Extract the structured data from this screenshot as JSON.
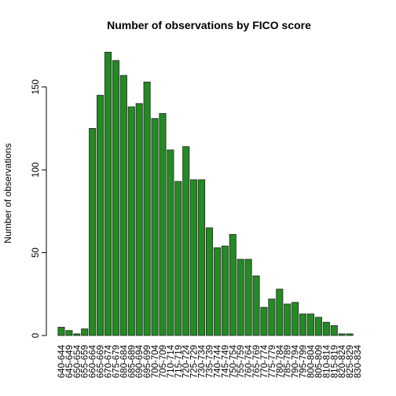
{
  "chart_data": {
    "type": "bar",
    "title": "Number of observations by FICO score",
    "xlabel": "",
    "ylabel": "Number of observations",
    "ylim": [
      0,
      175
    ],
    "yticks": [
      0,
      50,
      100,
      150
    ],
    "grid": false,
    "bar_color": "#228B22",
    "categories": [
      "640-644",
      "645-649",
      "650-654",
      "655-659",
      "660-664",
      "665-669",
      "670-674",
      "675-679",
      "680-684",
      "685-689",
      "690-694",
      "695-699",
      "700-704",
      "705-709",
      "710-714",
      "715-719",
      "720-724",
      "725-729",
      "730-734",
      "735-739",
      "740-744",
      "745-749",
      "750-754",
      "755-759",
      "760-764",
      "765-769",
      "770-774",
      "775-779",
      "780-784",
      "785-789",
      "790-794",
      "795-799",
      "800-804",
      "805-809",
      "810-814",
      "815-819",
      "820-824",
      "825-829",
      "830-834"
    ],
    "values": [
      5,
      3,
      1,
      4,
      125,
      145,
      171,
      166,
      157,
      138,
      140,
      153,
      131,
      134,
      112,
      93,
      114,
      94,
      94,
      65,
      53,
      54,
      61,
      46,
      46,
      36,
      17,
      22,
      28,
      19,
      20,
      13,
      13,
      11,
      8,
      6,
      1,
      1,
      0
    ]
  }
}
